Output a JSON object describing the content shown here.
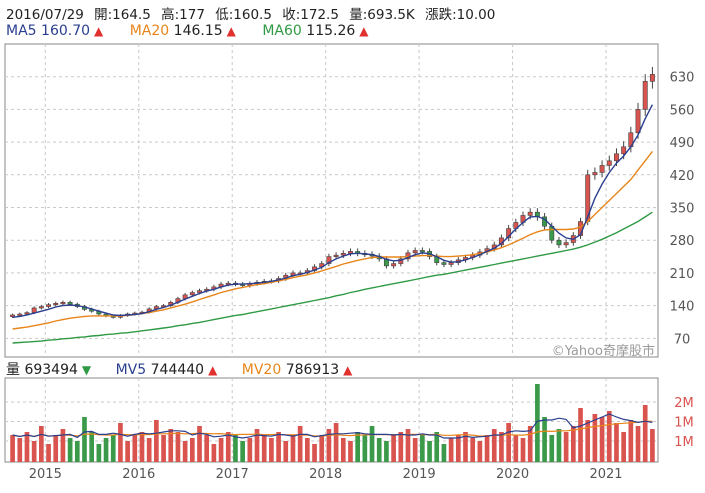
{
  "header": {
    "date": "2016/07/29",
    "open": "開:164.5",
    "high": "高:177",
    "low": "低:160.5",
    "close": "收:172.5",
    "volume": "量:693.5K",
    "change": "漲跌:10.00"
  },
  "ma_legend": [
    {
      "label": "MA5",
      "value": "160.70",
      "color": "#2a3f8f"
    },
    {
      "label": "MA20",
      "value": "146.15",
      "color": "#e8851a"
    },
    {
      "label": "MA60",
      "value": "115.26",
      "color": "#2f9a44"
    }
  ],
  "vol_legend": [
    {
      "label": "量",
      "value": "693494",
      "color": "#222222",
      "trend": "down"
    },
    {
      "label": "MV5",
      "value": "744440",
      "color": "#2a3f8f",
      "trend": "up"
    },
    {
      "label": "MV20",
      "value": "786913",
      "color": "#e8851a",
      "trend": "up"
    }
  ],
  "watermark": "©Yahoo奇摩股市",
  "colors": {
    "up": "#d9534f",
    "down": "#3a9a4a",
    "grid": "#c9c9c9",
    "axis_text": "#555555"
  },
  "chart_data": [
    {
      "type": "candlestick",
      "x_tick_labels": [
        "2015",
        "2016",
        "2017",
        "2018",
        "2019",
        "2020",
        "2021"
      ],
      "y_ticks": [
        70,
        140,
        210,
        280,
        350,
        420,
        490,
        560,
        630
      ],
      "ylim": [
        30,
        700
      ],
      "grid": true,
      "periods_per_year": 13,
      "start_year": 2014.65,
      "close": [
        120,
        122,
        125,
        135,
        138,
        142,
        145,
        147,
        143,
        138,
        132,
        128,
        122,
        118,
        115,
        119,
        122,
        124,
        126,
        133,
        138,
        140,
        147,
        155,
        163,
        168,
        172,
        175,
        180,
        186,
        188,
        186,
        183,
        187,
        190,
        192,
        193,
        198,
        205,
        210,
        210,
        215,
        223,
        230,
        245,
        248,
        252,
        256,
        252,
        250,
        246,
        240,
        225,
        230,
        240,
        253,
        258,
        256,
        245,
        232,
        228,
        232,
        238,
        243,
        248,
        255,
        262,
        270,
        285,
        305,
        318,
        333,
        340,
        330,
        310,
        280,
        270,
        275,
        290,
        320,
        420,
        425,
        440,
        450,
        465,
        480,
        510,
        560,
        620,
        635
      ],
      "ma5": [
        115,
        117,
        120,
        124,
        128,
        132,
        137,
        140,
        141,
        140,
        137,
        133,
        128,
        124,
        120,
        119,
        120,
        121,
        123,
        127,
        132,
        136,
        141,
        147,
        154,
        160,
        166,
        171,
        175,
        180,
        184,
        186,
        186,
        187,
        188,
        190,
        192,
        195,
        199,
        204,
        207,
        211,
        216,
        222,
        232,
        240,
        246,
        251,
        252,
        251,
        249,
        245,
        239,
        236,
        237,
        243,
        249,
        253,
        251,
        245,
        237,
        233,
        234,
        238,
        243,
        249,
        256,
        263,
        273,
        288,
        304,
        318,
        330,
        331,
        325,
        310,
        295,
        285,
        282,
        292,
        330,
        370,
        400,
        425,
        445,
        460,
        480,
        505,
        540,
        570
      ],
      "ma20": [
        90,
        92,
        94,
        97,
        100,
        103,
        107,
        110,
        113,
        115,
        117,
        118,
        118,
        118,
        118,
        118,
        119,
        121,
        123,
        125,
        128,
        131,
        135,
        139,
        143,
        148,
        153,
        158,
        163,
        168,
        172,
        176,
        179,
        182,
        185,
        187,
        190,
        193,
        196,
        200,
        203,
        206,
        210,
        214,
        219,
        224,
        229,
        233,
        237,
        240,
        243,
        244,
        244,
        244,
        244,
        245,
        246,
        247,
        247,
        246,
        245,
        245,
        246,
        247,
        249,
        252,
        255,
        259,
        264,
        270,
        277,
        284,
        292,
        298,
        302,
        303,
        303,
        303,
        304,
        308,
        320,
        335,
        350,
        365,
        380,
        395,
        410,
        430,
        450,
        470
      ],
      "ma60": [
        60,
        61,
        62,
        63,
        64,
        66,
        67,
        69,
        70,
        72,
        73,
        75,
        76,
        78,
        79,
        81,
        82,
        84,
        86,
        88,
        90,
        92,
        94,
        97,
        99,
        102,
        104,
        107,
        110,
        113,
        116,
        119,
        121,
        124,
        127,
        130,
        133,
        136,
        139,
        142,
        145,
        148,
        151,
        154,
        157,
        161,
        164,
        168,
        171,
        175,
        178,
        181,
        184,
        187,
        190,
        193,
        196,
        199,
        202,
        205,
        207,
        210,
        213,
        216,
        219,
        222,
        225,
        228,
        231,
        234,
        237,
        240,
        243,
        246,
        249,
        252,
        255,
        258,
        261,
        265,
        270,
        276,
        282,
        289,
        296,
        304,
        312,
        320,
        330,
        340
      ]
    },
    {
      "type": "bar",
      "y_tick_labels": [
        "2M",
        "1M",
        "1M"
      ],
      "volume_m": [
        0.9,
        0.8,
        1.0,
        0.7,
        1.2,
        0.6,
        0.9,
        1.1,
        0.8,
        0.7,
        1.5,
        1.0,
        0.6,
        0.8,
        0.9,
        1.3,
        0.7,
        0.9,
        1.0,
        0.8,
        1.4,
        0.9,
        1.1,
        1.0,
        0.7,
        0.8,
        1.2,
        0.9,
        0.6,
        0.8,
        1.0,
        0.9,
        0.7,
        0.8,
        1.1,
        0.9,
        0.8,
        1.0,
        0.7,
        0.9,
        1.2,
        0.8,
        0.6,
        0.9,
        1.1,
        1.3,
        0.8,
        0.7,
        1.0,
        0.9,
        1.2,
        0.8,
        0.7,
        0.9,
        1.0,
        1.1,
        0.8,
        0.9,
        0.7,
        1.0,
        0.6,
        0.8,
        0.9,
        1.0,
        0.8,
        0.7,
        0.9,
        1.1,
        1.0,
        1.3,
        0.9,
        0.8,
        1.2,
        2.6,
        1.5,
        0.9,
        1.1,
        1.0,
        1.2,
        1.8,
        1.4,
        1.6,
        1.5,
        1.7,
        1.3,
        1.0,
        1.4,
        1.2,
        1.9,
        1.1
      ]
    }
  ]
}
